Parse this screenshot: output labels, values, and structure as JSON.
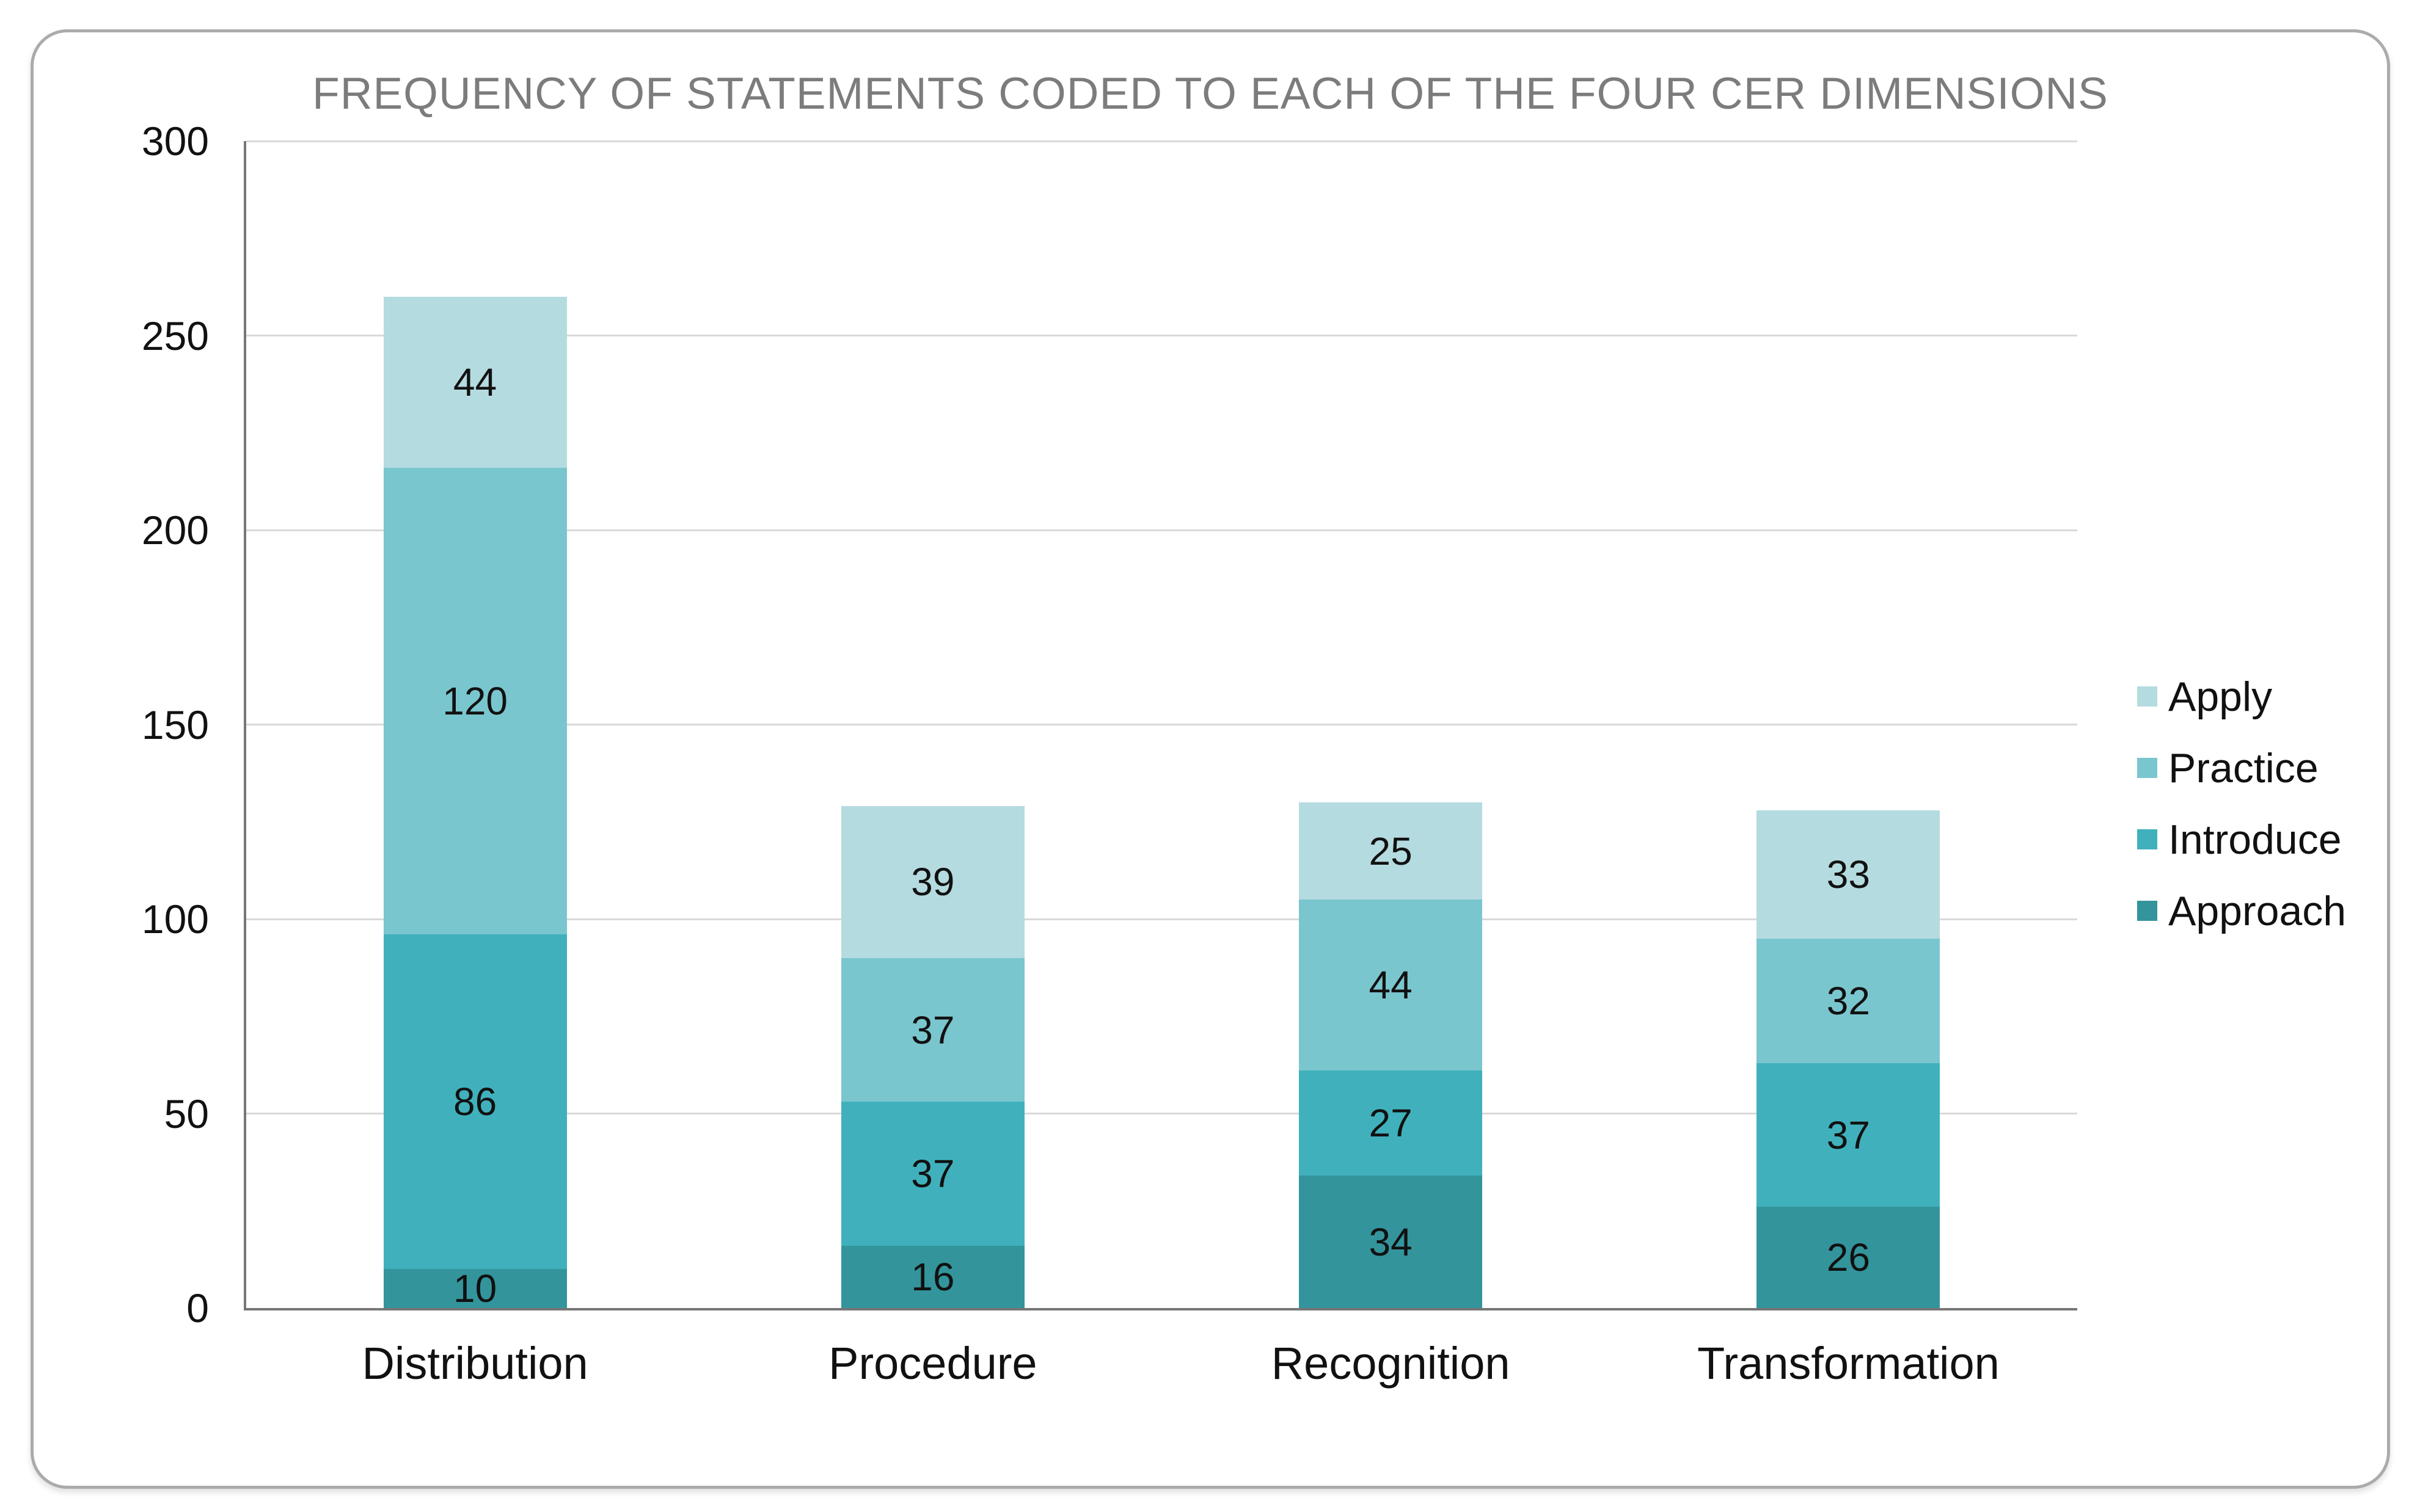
{
  "chart_data": {
    "type": "bar",
    "stacked": true,
    "title": "FREQUENCY OF STATEMENTS CODED TO EACH OF THE FOUR CER DIMENSIONS",
    "categories": [
      "Distribution",
      "Procedure",
      "Recognition",
      "Transformation"
    ],
    "series": [
      {
        "name": "Approach",
        "color": "#33949c",
        "values": [
          10,
          16,
          34,
          26
        ]
      },
      {
        "name": "Introduce",
        "color": "#40b1bc",
        "values": [
          86,
          37,
          27,
          37
        ]
      },
      {
        "name": "Practice",
        "color": "#7ac6ce",
        "values": [
          120,
          37,
          44,
          32
        ]
      },
      {
        "name": "Apply",
        "color": "#b4dbe0",
        "values": [
          44,
          39,
          25,
          33
        ]
      }
    ],
    "bar_totals": [
      260,
      129,
      130,
      128
    ],
    "legend_order": [
      "Apply",
      "Practice",
      "Introduce",
      "Approach"
    ],
    "legend_position": "right",
    "ylim": [
      0,
      300
    ],
    "yticks": [
      0,
      50,
      100,
      150,
      200,
      250,
      300
    ],
    "grid": true,
    "data_labels": true,
    "xlabel": "",
    "ylabel": ""
  },
  "colors": {
    "title_text": "#7c7c7c",
    "axis_line": "#767676",
    "gridline": "#d9d9d9",
    "label_text": "#111111",
    "card_border": "#ababab",
    "background": "#ffffff"
  }
}
